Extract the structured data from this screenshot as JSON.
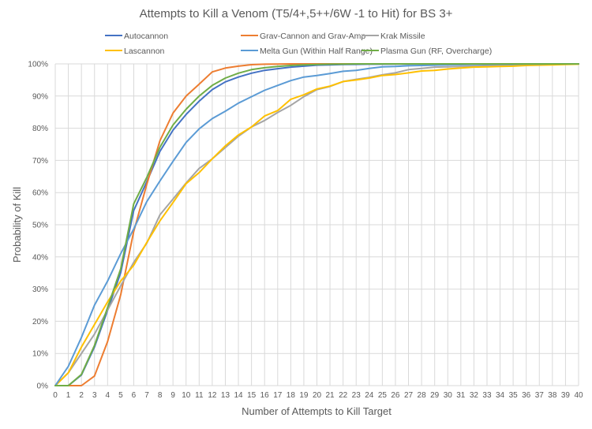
{
  "chart_data": {
    "type": "line",
    "title": "Attempts to Kill a Venom (T5/4+,5++/6W -1 to Hit) for BS 3+",
    "xlabel": "Number of Attempts to Kill Target",
    "ylabel": "Probability of Kill",
    "xlim": [
      0,
      40
    ],
    "ylim": [
      0,
      100
    ],
    "y_unit": "%",
    "grid": true,
    "legend_position": "top",
    "x": [
      0,
      1,
      2,
      3,
      4,
      5,
      6,
      7,
      8,
      9,
      10,
      11,
      12,
      13,
      14,
      15,
      16,
      17,
      18,
      19,
      20,
      21,
      22,
      23,
      24,
      25,
      26,
      27,
      28,
      29,
      30,
      31,
      32,
      33,
      34,
      35,
      36,
      37,
      38,
      39,
      40
    ],
    "x_tick_labels": [
      "0",
      "1",
      "2",
      "3",
      "4",
      "5",
      "6",
      "7",
      "8",
      "9",
      "10",
      "11",
      "12",
      "13",
      "14",
      "15",
      "16",
      "17",
      "18",
      "19",
      "20",
      "21",
      "22",
      "23",
      "24",
      "25",
      "26",
      "27",
      "28",
      "29",
      "30",
      "31",
      "32",
      "33",
      "34",
      "35",
      "36",
      "37",
      "38",
      "39",
      "40"
    ],
    "y_tick_labels": [
      "0%",
      "10%",
      "20%",
      "30%",
      "40%",
      "50%",
      "60%",
      "70%",
      "80%",
      "90%",
      "100%"
    ],
    "series": [
      {
        "name": "Autocannon",
        "color": "#4472C4",
        "values": [
          0,
          0,
          3.3,
          12,
          23.4,
          35.1,
          54.4,
          63.4,
          72.8,
          79.4,
          84.3,
          88.4,
          92.0,
          94.4,
          95.9,
          97.1,
          98.0,
          98.5,
          99.0,
          99.3,
          99.6,
          99.7,
          99.8,
          99.85,
          99.9,
          99.9,
          99.95,
          99.95,
          100,
          100,
          100,
          100,
          100,
          100,
          100,
          100,
          100,
          100,
          100,
          100,
          100
        ]
      },
      {
        "name": "Grav-Cannon and Grav-Amp",
        "color": "#ED7D31",
        "values": [
          0,
          0,
          0,
          3,
          13.7,
          28.2,
          47.9,
          62.6,
          76.1,
          84.7,
          90.0,
          93.7,
          97.5,
          98.7,
          99.3,
          99.75,
          99.9,
          99.95,
          100,
          100,
          100,
          100,
          100,
          100,
          100,
          100,
          100,
          100,
          100,
          100,
          100,
          100,
          100,
          100,
          100,
          100,
          100,
          100,
          100,
          100,
          100
        ]
      },
      {
        "name": "Krak Missile",
        "color": "#A5A5A5",
        "values": [
          0,
          4,
          10,
          16,
          23.5,
          31,
          38.3,
          44.3,
          53.1,
          58,
          63,
          67.5,
          70.5,
          74,
          77.5,
          80.4,
          82.4,
          84.9,
          87.1,
          89.8,
          92,
          93,
          94.5,
          95.2,
          95.8,
          96.6,
          97.2,
          98.2,
          98.6,
          99.0,
          99.1,
          99.2,
          99.3,
          99.4,
          99.5,
          99.6,
          99.7,
          99.75,
          99.8,
          99.9,
          100
        ]
      },
      {
        "name": "Lascannon",
        "color": "#FFC000",
        "values": [
          0,
          4,
          12,
          19,
          26,
          32.5,
          37.4,
          44.5,
          51.2,
          56.9,
          62.8,
          66.2,
          70.5,
          74.5,
          77.9,
          80.4,
          83.8,
          85.5,
          89,
          90.4,
          92.2,
          93.1,
          94.5,
          95,
          95.6,
          96.4,
          96.7,
          97.2,
          97.8,
          98,
          98.4,
          98.7,
          99,
          99.1,
          99.2,
          99.3,
          99.5,
          99.6,
          99.7,
          99.8,
          99.9
        ]
      },
      {
        "name": "Melta Gun (Within Half Range)",
        "color": "#5B9BD5",
        "values": [
          0,
          6,
          15,
          25,
          32.5,
          41,
          48.7,
          57.2,
          63.6,
          69.7,
          75.6,
          79.8,
          83,
          85.3,
          87.8,
          89.8,
          91.8,
          93.3,
          94.8,
          95.9,
          96.4,
          97,
          97.7,
          98,
          98.6,
          99.1,
          99.2,
          99.4,
          99.5,
          99.6,
          99.7,
          99.75,
          99.8,
          99.85,
          99.9,
          99.9,
          99.95,
          99.95,
          100,
          100,
          100
        ]
      },
      {
        "name": "Plasma Gun (RF, Overcharge)",
        "color": "#70AD47",
        "values": [
          0,
          0,
          3.5,
          12.5,
          24.3,
          36.3,
          56.5,
          64.7,
          74.1,
          81,
          85.9,
          90,
          93.3,
          95.6,
          97.1,
          98.2,
          98.8,
          99.2,
          99.5,
          99.7,
          99.8,
          99.9,
          99.95,
          100,
          100,
          100,
          100,
          100,
          100,
          100,
          100,
          100,
          100,
          100,
          100,
          100,
          100,
          100,
          100,
          100,
          100
        ]
      }
    ]
  }
}
